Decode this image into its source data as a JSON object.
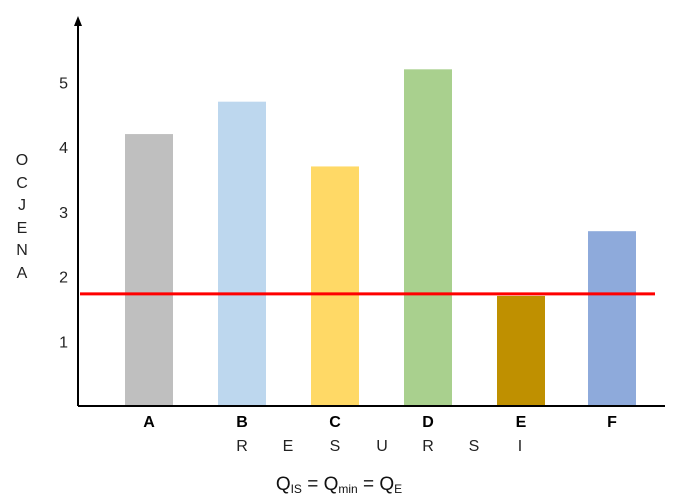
{
  "chart_data": {
    "type": "bar",
    "categories": [
      "A",
      "B",
      "C",
      "D",
      "E",
      "F"
    ],
    "values": [
      4.2,
      4.7,
      3.7,
      5.2,
      1.7,
      2.7
    ],
    "colors": [
      "#bfbfbf",
      "#bdd7ee",
      "#ffd966",
      "#a9d08e",
      "#bf9000",
      "#8eaadb"
    ],
    "yticks": [
      1,
      2,
      3,
      4,
      5
    ],
    "ylim": [
      0,
      5.9
    ],
    "ylabel": "OCJENA",
    "xlabel": "RESURSI",
    "threshold": {
      "value": 1.7,
      "color": "#ff0000"
    },
    "grid": false
  },
  "ylabel_letters": [
    "O",
    "C",
    "J",
    "E",
    "N",
    "A"
  ],
  "xsub_letters": [
    "R",
    "E",
    "S",
    "U",
    "R",
    "S",
    "I"
  ],
  "formula": {
    "q1": "Q",
    "s1": "IS",
    "eq1": " = ",
    "q2": "Q",
    "s2": "min",
    "eq2": " = ",
    "q3": "Q",
    "s3": "E"
  }
}
